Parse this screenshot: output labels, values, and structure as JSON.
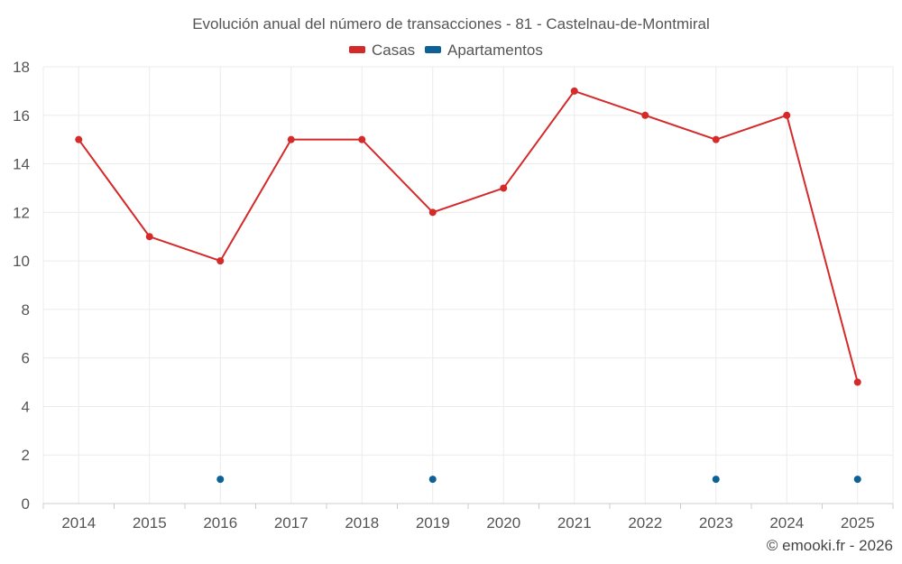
{
  "chart_data": {
    "type": "line",
    "title": "Evolución anual del número de transacciones - 81 - Castelnau-de-Montmiral",
    "categories": [
      "2014",
      "2015",
      "2016",
      "2017",
      "2018",
      "2019",
      "2020",
      "2021",
      "2022",
      "2023",
      "2024",
      "2025"
    ],
    "series": [
      {
        "name": "Casas",
        "color": "#d42a2a",
        "line": true,
        "values": [
          15,
          11,
          10,
          15,
          15,
          12,
          13,
          17,
          16,
          15,
          16,
          5
        ]
      },
      {
        "name": "Apartamentos",
        "color": "#0d6196",
        "line": false,
        "values": [
          null,
          null,
          1,
          null,
          null,
          1,
          null,
          null,
          null,
          1,
          null,
          1
        ]
      }
    ],
    "ylim": [
      0,
      18
    ],
    "yticks": [
      "0",
      "2",
      "4",
      "6",
      "8",
      "10",
      "12",
      "14",
      "16",
      "18"
    ],
    "grid": true,
    "legend": "top-center",
    "xlabel": "",
    "ylabel": ""
  },
  "credit": "© emooki.fr - 2026"
}
